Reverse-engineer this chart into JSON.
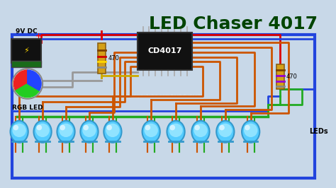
{
  "title": "LED Chaser 4017",
  "background_color": "#C8D8E8",
  "frame_color": "#4466BB",
  "title_color": "#004400",
  "title_fontsize": 18,
  "fig_width": 4.74,
  "fig_height": 2.66,
  "dpi": 100,
  "battery_label": "9V DC",
  "rgb_led_label": "RGB LED",
  "chip_label": "CD4017",
  "resistor1_label": "470",
  "resistor2_label": "470",
  "leds_label": "LEDs",
  "wire_red_color": "#DD0000",
  "wire_blue_color": "#2244DD",
  "wire_green_color": "#22AA22",
  "wire_orange_color": "#CC5500",
  "wire_yellow_color": "#CCAA00",
  "wire_gray_color": "#999999"
}
